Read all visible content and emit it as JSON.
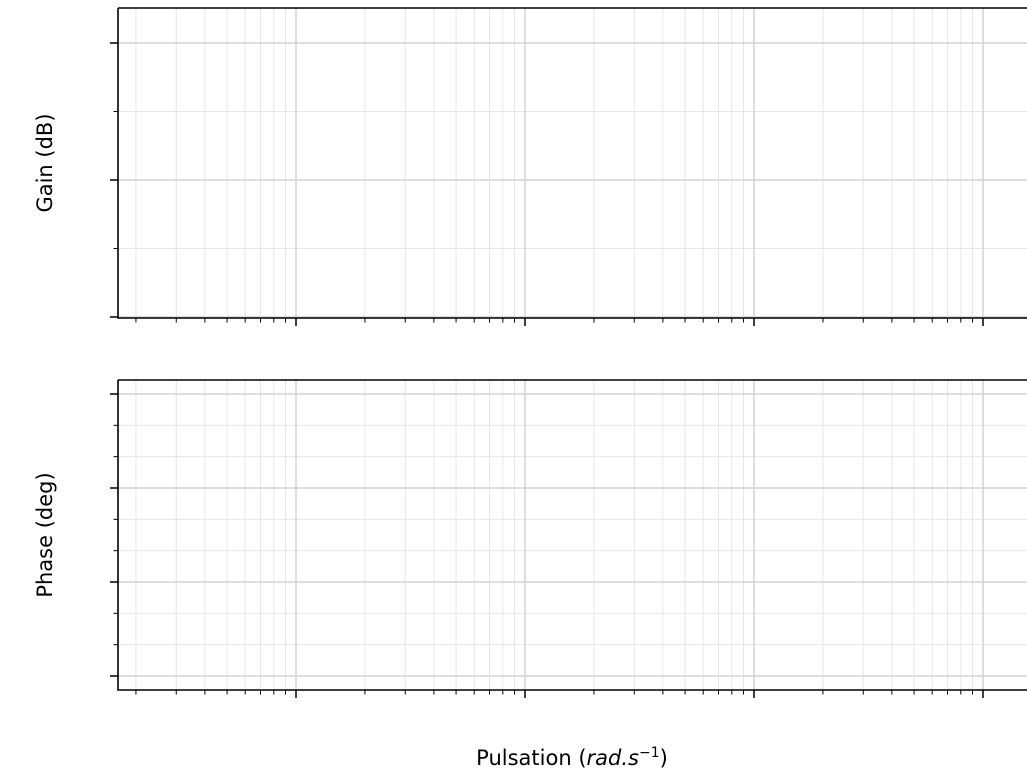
{
  "chart_data": [
    {
      "type": "line",
      "title": "",
      "xlabel": "",
      "ylabel": "Gain (dB)",
      "xscale": "log",
      "x_decades": 4,
      "y_major_ticks": 3,
      "y_minor_per_major": 2,
      "grid": true,
      "tick_labels": "none",
      "series": []
    },
    {
      "type": "line",
      "title": "",
      "xlabel": "",
      "ylabel": "Phase (deg)",
      "xscale": "log",
      "x_decades": 4,
      "y_major_ticks": 4,
      "y_minor_per_major": 3,
      "grid": true,
      "tick_labels": "none",
      "series": []
    }
  ],
  "figure": {
    "xlabel_prefix": "Pulsation (",
    "xlabel_math_main": "rad.s",
    "xlabel_math_sup": "−1",
    "xlabel_suffix": ")"
  },
  "colors": {
    "axis": "#000000",
    "grid_major": "#d3d3d3",
    "grid_minor": "#e6e6e6"
  }
}
